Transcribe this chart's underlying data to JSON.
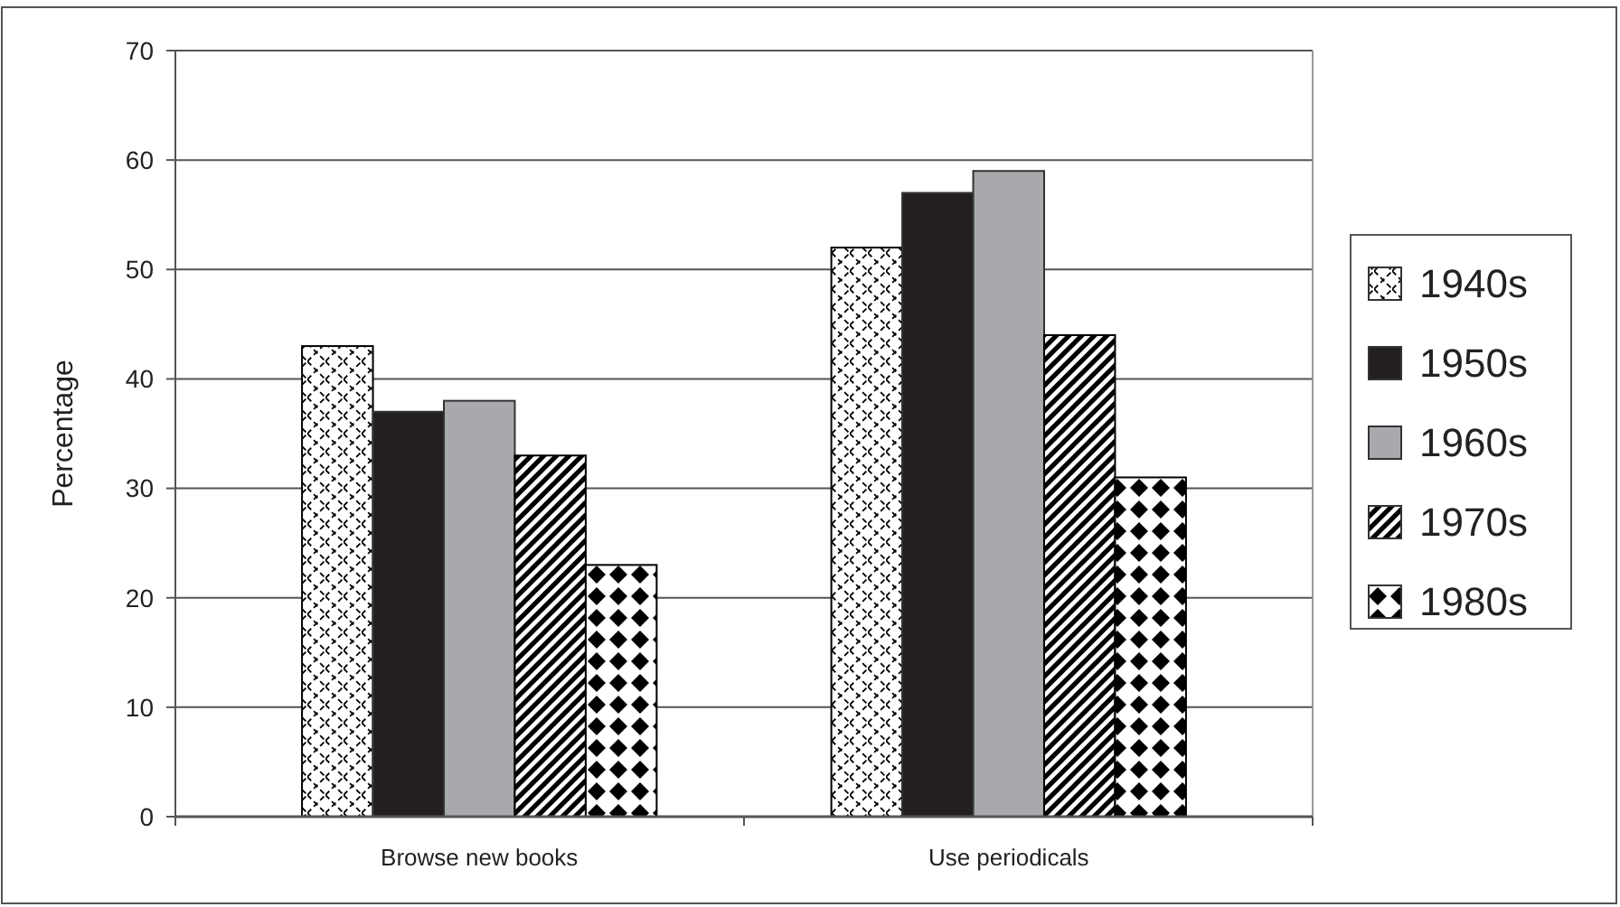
{
  "chart_data": {
    "type": "bar",
    "ylabel": "Percentage",
    "categories": [
      "Browse new books",
      "Use periodicals"
    ],
    "series": [
      {
        "name": "1940s",
        "color": "#000000",
        "values": [
          43,
          52
        ]
      },
      {
        "name": "1950s",
        "color": "#231f20",
        "values": [
          37,
          57
        ]
      },
      {
        "name": "1960s",
        "color": "#a7a9ac",
        "values": [
          38,
          59
        ]
      },
      {
        "name": "1970s",
        "color": "#000000",
        "values": [
          33,
          44
        ]
      },
      {
        "name": "1980s",
        "color": "#000000",
        "values": [
          23,
          31
        ]
      }
    ],
    "ylim": [
      0,
      70
    ],
    "yticks": [
      0,
      10,
      20,
      30,
      40,
      50,
      60,
      70
    ],
    "grid": "y",
    "legend": "right"
  }
}
